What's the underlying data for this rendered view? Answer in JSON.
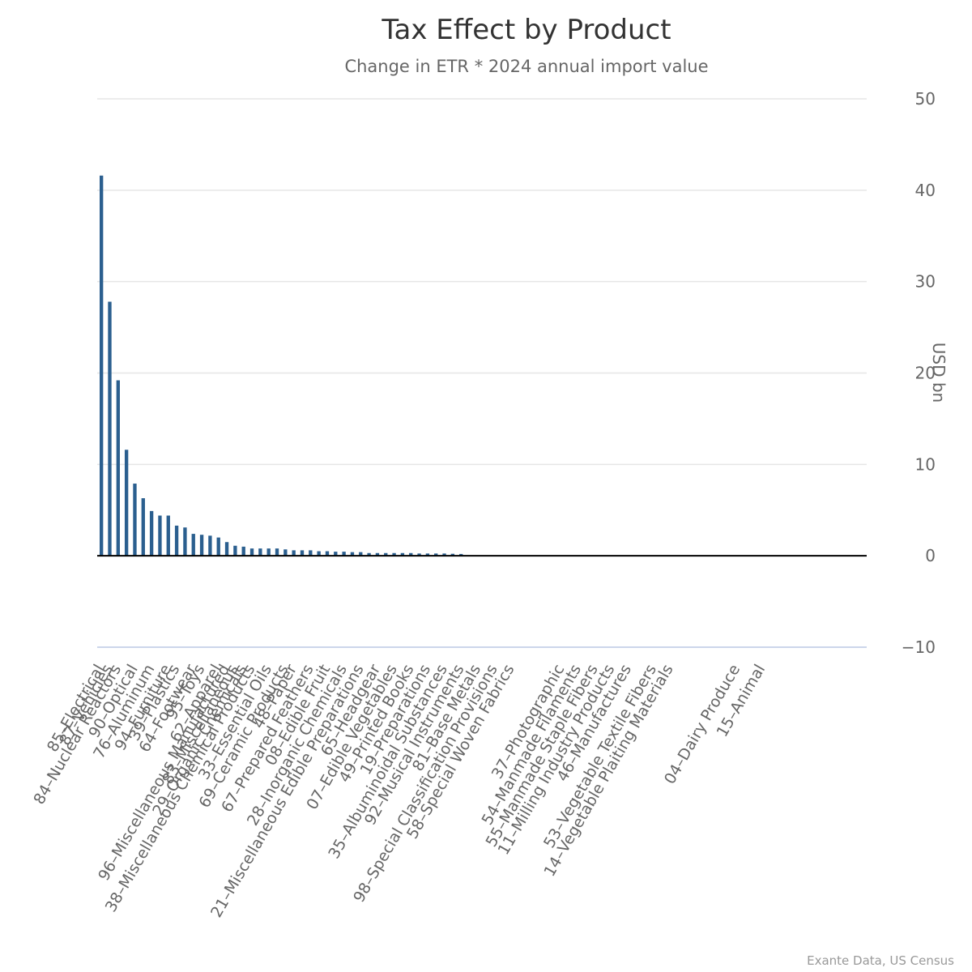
{
  "chart_data": {
    "type": "bar",
    "title": "Tax Effect by Product",
    "subtitle": "Change in ETR * 2024 annual import value",
    "xlabel": "",
    "ylabel": "USD bn",
    "ylim": [
      -10,
      50
    ],
    "yticks": [
      50,
      40,
      30,
      20,
      10,
      0,
      -10
    ],
    "grid": true,
    "y_axis_position": "right",
    "credit": "Exante Data, US Census",
    "series": [
      {
        "name": "Tax Effect",
        "color": "#2b5f8f",
        "values": [
          41.6,
          27.8,
          19.2,
          11.6,
          7.9,
          6.3,
          4.9,
          4.4,
          4.4,
          3.3,
          3.1,
          2.4,
          2.3,
          2.2,
          2.0,
          1.5,
          1.1,
          1.0,
          0.8,
          0.8,
          0.8,
          0.8,
          0.7,
          0.6,
          0.6,
          0.6,
          0.5,
          0.5,
          0.45,
          0.45,
          0.4,
          0.4,
          0.3,
          0.3,
          0.3,
          0.3,
          0.3,
          0.3,
          0.25,
          0.25,
          0.25,
          0.25,
          0.22,
          0.2,
          0.05,
          0.05,
          0.04,
          0.04,
          0.03,
          0.03,
          0.03,
          0.03,
          0.02,
          0.02,
          0.02,
          0.02,
          0.02,
          0.02,
          0.01,
          0.01,
          0.01,
          0.01,
          0.01,
          0.01,
          0.01,
          0.01,
          0.01,
          0.01,
          0.01,
          0.01,
          0.01,
          0.01,
          0.01,
          0.01,
          0.01,
          0.01,
          0.01,
          0.01,
          0.01,
          0.01,
          0.01,
          0.01,
          0.01,
          0.01,
          0.01,
          0.01,
          0.01,
          0.01,
          0.01,
          0.01,
          0.01,
          0.01
        ]
      }
    ],
    "x_tick_labels": [
      "85–Electrical",
      "87–Vehicles",
      "84–Nuclear Reactors",
      "90–Optical",
      "76–Aluminum",
      "94–Furniture",
      "39–Plastics",
      "64–Footwear",
      "95–Toys",
      "62–Apparel",
      "96–Miscellaneous Manufactured",
      "83–Miscellaneous",
      "29–Organic Chemicals",
      "38–Miscellaneous Chemical Products",
      "33–Essential Oils",
      "69–Ceramic Products",
      "48–Paper",
      "67–Prepared Feathers",
      "08–Edible Fruit",
      "28–Inorganic Chemicals",
      "21–Miscellaneous Edible Preparations",
      "65–Headgear",
      "07–Edible Vegetables",
      "49–Printed Books",
      "19–Preparations",
      "35–Albuminoidal Substances",
      "92–Musical Instruments",
      "81–Base Metals",
      "98–Special Classification Provisions",
      "58–Special Woven Fabrics",
      "37–Photographic",
      "54–Manmade Filaments",
      "55–Manmade Staple Fibers",
      "11–Milling Industry Products",
      "46–Manufactures",
      "53–Vegetable Textile Fibers",
      "14–Vegetable Plaiting Materials",
      "04–Dairy Produce",
      "15–Animal"
    ],
    "x_tick_positions": [
      0,
      1,
      2,
      4,
      6,
      8,
      9,
      11,
      12,
      14,
      15,
      16,
      17,
      18,
      20,
      22,
      23,
      25,
      27,
      29,
      31,
      33,
      35,
      37,
      39,
      41,
      43,
      45,
      47,
      49,
      55,
      57,
      59,
      61,
      63,
      66,
      68,
      76,
      79
    ]
  }
}
